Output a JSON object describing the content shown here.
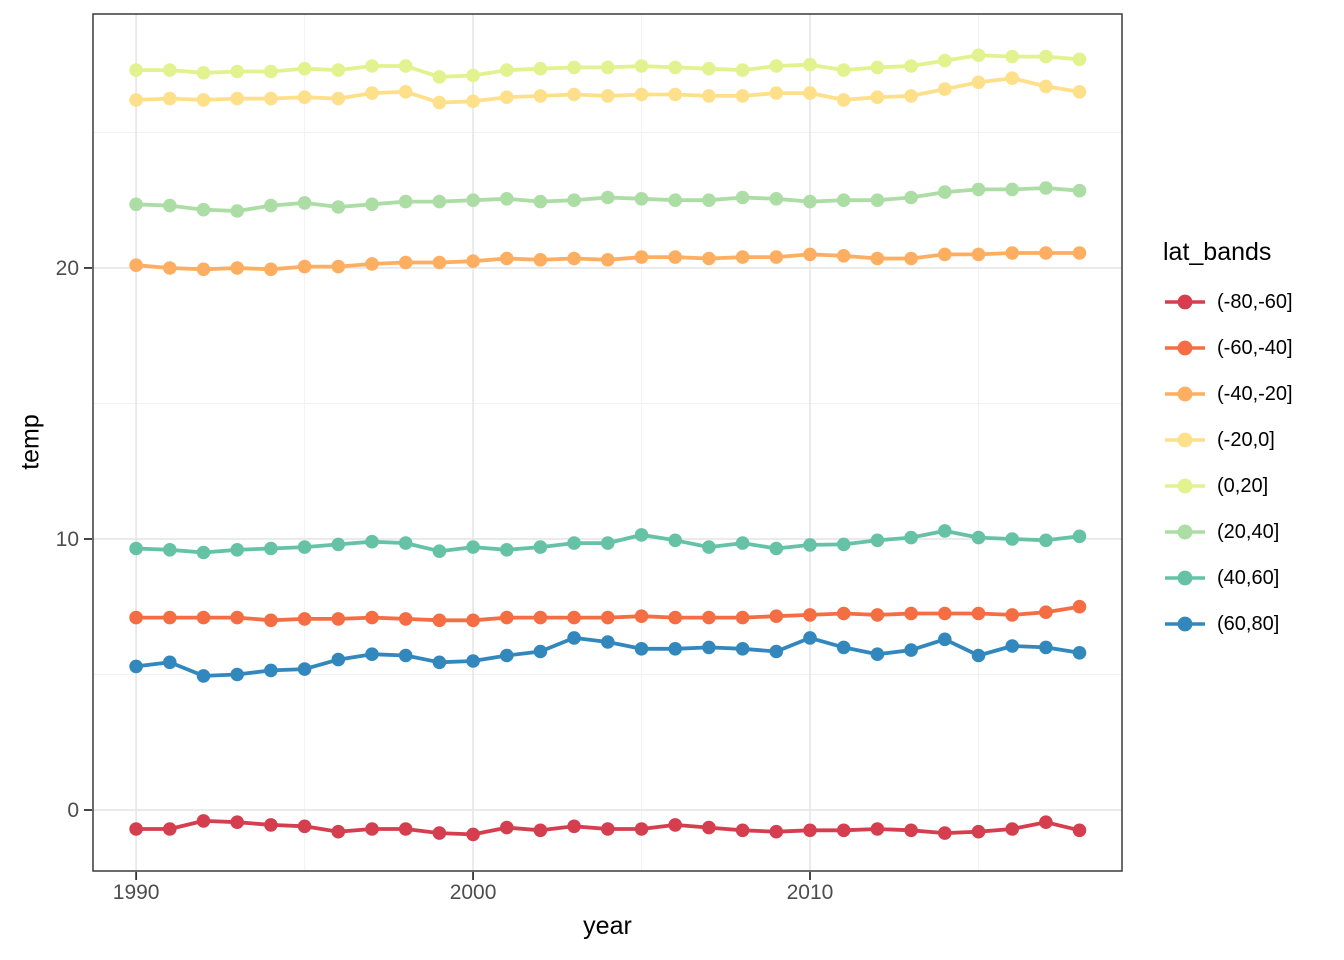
{
  "chart_data": {
    "type": "line",
    "title": "",
    "xlabel": "year",
    "ylabel": "temp",
    "legend_title": "lat_bands",
    "legend_position": "right",
    "grid": true,
    "panel_style": {
      "background": "#ffffff",
      "border_color": "#3a3a3a",
      "major_grid_color": "#e6e6e6",
      "minor_grid_color": "#f2f2f2",
      "tick_color": "#333333",
      "tick_label_color": "#4d4d4d"
    },
    "x": [
      1990,
      1991,
      1992,
      1993,
      1994,
      1995,
      1996,
      1997,
      1998,
      1999,
      2000,
      2001,
      2002,
      2003,
      2004,
      2005,
      2006,
      2007,
      2008,
      2009,
      2010,
      2011,
      2012,
      2013,
      2014,
      2015,
      2016,
      2017,
      2018
    ],
    "xlim": [
      1988.72,
      2019.26
    ],
    "ylim": [
      -2.25,
      29.37
    ],
    "x_ticks": [
      1990,
      2000,
      2010
    ],
    "x_tick_labels": [
      "1990",
      "2000",
      "2010"
    ],
    "x_minor_ticks": [
      1995,
      2005,
      2015
    ],
    "y_ticks": [
      0,
      10,
      20
    ],
    "y_tick_labels": [
      "0",
      "10",
      "20"
    ],
    "y_minor_ticks": [
      5,
      15,
      25
    ],
    "series": [
      {
        "name": "(-80,-60]",
        "color": "#d53e4f",
        "values": [
          -0.7,
          -0.7,
          -0.4,
          -0.45,
          -0.55,
          -0.6,
          -0.8,
          -0.7,
          -0.7,
          -0.85,
          -0.9,
          -0.65,
          -0.75,
          -0.6,
          -0.7,
          -0.7,
          -0.55,
          -0.65,
          -0.75,
          -0.8,
          -0.75,
          -0.75,
          -0.7,
          -0.75,
          -0.85,
          -0.8,
          -0.7,
          -0.45,
          -0.75
        ]
      },
      {
        "name": "(-60,-40]",
        "color": "#f46d43",
        "values": [
          7.1,
          7.1,
          7.1,
          7.1,
          7.0,
          7.05,
          7.05,
          7.1,
          7.05,
          7.0,
          7.0,
          7.1,
          7.1,
          7.1,
          7.1,
          7.15,
          7.1,
          7.1,
          7.1,
          7.15,
          7.2,
          7.25,
          7.2,
          7.25,
          7.25,
          7.25,
          7.2,
          7.3,
          7.5
        ]
      },
      {
        "name": "(-40,-20]",
        "color": "#fdae61",
        "values": [
          20.1,
          20.0,
          19.95,
          20.0,
          19.95,
          20.05,
          20.05,
          20.15,
          20.2,
          20.2,
          20.25,
          20.35,
          20.3,
          20.35,
          20.3,
          20.4,
          20.4,
          20.35,
          20.4,
          20.4,
          20.5,
          20.45,
          20.35,
          20.35,
          20.5,
          20.5,
          20.55,
          20.55,
          20.55
        ]
      },
      {
        "name": "(-20,0]",
        "color": "#fee08b",
        "values": [
          26.2,
          26.25,
          26.2,
          26.25,
          26.25,
          26.3,
          26.25,
          26.45,
          26.5,
          26.1,
          26.15,
          26.3,
          26.35,
          26.4,
          26.35,
          26.4,
          26.4,
          26.35,
          26.35,
          26.45,
          26.45,
          26.2,
          26.3,
          26.35,
          26.6,
          26.85,
          27.0,
          26.7,
          26.5
        ]
      },
      {
        "name": "(0,20]",
        "color": "#e2f28e",
        "values": [
          27.3,
          27.3,
          27.2,
          27.25,
          27.25,
          27.35,
          27.3,
          27.45,
          27.45,
          27.05,
          27.1,
          27.3,
          27.35,
          27.4,
          27.4,
          27.45,
          27.4,
          27.35,
          27.3,
          27.45,
          27.5,
          27.3,
          27.4,
          27.45,
          27.65,
          27.85,
          27.8,
          27.8,
          27.7
        ]
      },
      {
        "name": "(20,40]",
        "color": "#abdda4",
        "values": [
          22.35,
          22.3,
          22.15,
          22.1,
          22.3,
          22.4,
          22.25,
          22.35,
          22.45,
          22.45,
          22.5,
          22.55,
          22.45,
          22.5,
          22.6,
          22.55,
          22.5,
          22.5,
          22.6,
          22.55,
          22.45,
          22.5,
          22.5,
          22.6,
          22.8,
          22.9,
          22.9,
          22.95,
          22.85
        ]
      },
      {
        "name": "(40,60]",
        "color": "#66c2a5",
        "values": [
          9.65,
          9.6,
          9.5,
          9.6,
          9.65,
          9.7,
          9.8,
          9.9,
          9.85,
          9.55,
          9.7,
          9.6,
          9.7,
          9.85,
          9.85,
          10.15,
          9.95,
          9.7,
          9.85,
          9.65,
          9.78,
          9.8,
          9.95,
          10.05,
          10.3,
          10.05,
          10.0,
          9.95,
          10.1
        ]
      },
      {
        "name": "(60,80]",
        "color": "#3288bd",
        "values": [
          5.3,
          5.45,
          4.95,
          5.0,
          5.15,
          5.2,
          5.55,
          5.75,
          5.7,
          5.45,
          5.5,
          5.7,
          5.85,
          6.35,
          6.2,
          5.95,
          5.95,
          6.0,
          5.95,
          5.85,
          6.35,
          6.0,
          5.75,
          5.9,
          6.3,
          5.7,
          6.05,
          6.0,
          5.8
        ]
      }
    ]
  }
}
